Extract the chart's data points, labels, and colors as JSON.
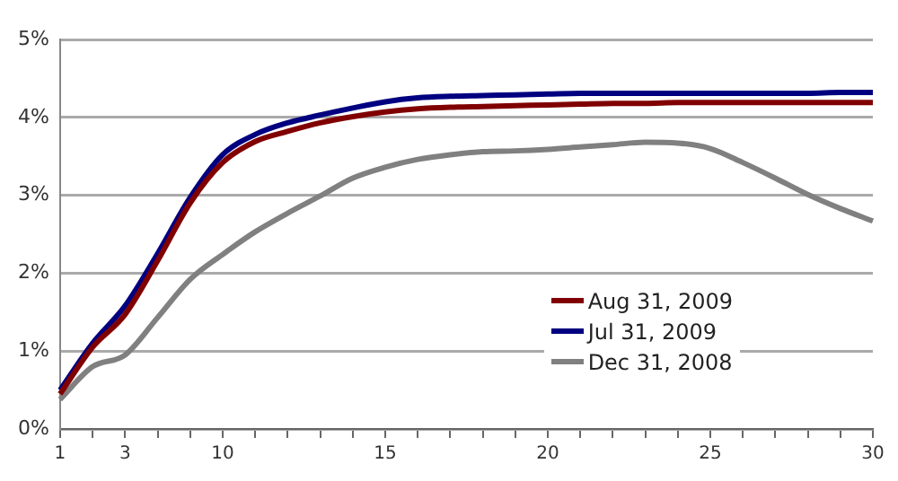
{
  "chart_data": {
    "type": "line",
    "categories": [
      "1",
      null,
      "3",
      null,
      null,
      "10",
      null,
      null,
      null,
      null,
      "15",
      null,
      null,
      null,
      null,
      "20",
      null,
      null,
      null,
      null,
      "25",
      null,
      null,
      null,
      null,
      "30"
    ],
    "series": [
      {
        "name": "Aug 31, 2009",
        "color": "#800000",
        "values": [
          0.45,
          1.05,
          1.47,
          2.16,
          2.9,
          3.42,
          3.69,
          3.82,
          3.93,
          4.01,
          4.07,
          4.11,
          4.13,
          4.14,
          4.15,
          4.16,
          4.17,
          4.18,
          4.18,
          4.19,
          4.19,
          4.19,
          4.19,
          4.19,
          4.19,
          4.19
        ]
      },
      {
        "name": "Jul 31, 2009",
        "color": "#000080",
        "values": [
          0.5,
          1.1,
          1.58,
          2.25,
          2.97,
          3.52,
          3.78,
          3.93,
          4.03,
          4.12,
          4.2,
          4.25,
          4.27,
          4.28,
          4.29,
          4.3,
          4.31,
          4.31,
          4.31,
          4.31,
          4.31,
          4.31,
          4.31,
          4.31,
          4.32,
          4.32
        ]
      },
      {
        "name": "Dec 31, 2008",
        "color": "#808080",
        "values": [
          0.38,
          0.8,
          0.95,
          1.43,
          1.92,
          2.24,
          2.53,
          2.77,
          2.99,
          3.22,
          3.36,
          3.46,
          3.52,
          3.56,
          3.57,
          3.59,
          3.62,
          3.65,
          3.68,
          3.67,
          3.6,
          3.42,
          3.22,
          3.01,
          2.83,
          2.67
        ]
      }
    ],
    "ylim": [
      0,
      5
    ],
    "yticks": [
      {
        "value": 0,
        "label": "0%"
      },
      {
        "value": 1,
        "label": "1%"
      },
      {
        "value": 2,
        "label": "2%"
      },
      {
        "value": 3,
        "label": "3%"
      },
      {
        "value": 4,
        "label": "4%"
      },
      {
        "value": 5,
        "label": "5%"
      }
    ],
    "grid": "y",
    "legend": "bottom right",
    "marker": "none",
    "line_style": "solid"
  }
}
